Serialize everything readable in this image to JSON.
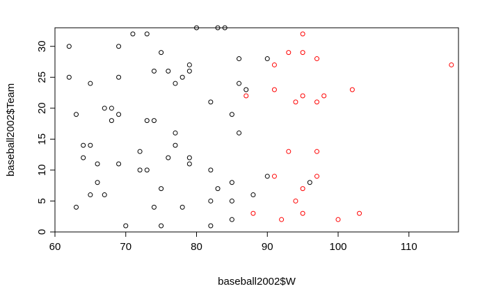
{
  "chart_data": {
    "type": "scatter",
    "xlabel": "baseball2002$W",
    "ylabel": "baseball2002$Team",
    "xlim": [
      60,
      117
    ],
    "ylim": [
      0,
      33
    ],
    "xticks": [
      60,
      70,
      80,
      90,
      100,
      110
    ],
    "yticks": [
      0,
      5,
      10,
      15,
      20,
      25,
      30
    ],
    "grid": false,
    "marker": "open-circle",
    "colors": {
      "black": "#000000",
      "red": "#ff0000"
    },
    "series": [
      {
        "color": "black",
        "points": [
          [
            62,
            30
          ],
          [
            62,
            25
          ],
          [
            63,
            19
          ],
          [
            63,
            4
          ],
          [
            64,
            14
          ],
          [
            64,
            12
          ],
          [
            65,
            24
          ],
          [
            65,
            14
          ],
          [
            65,
            6
          ],
          [
            66,
            11
          ],
          [
            66,
            8
          ],
          [
            67,
            20
          ],
          [
            67,
            6
          ],
          [
            68,
            20
          ],
          [
            68,
            18
          ],
          [
            69,
            30
          ],
          [
            69,
            25
          ],
          [
            69,
            19
          ],
          [
            69,
            11
          ],
          [
            70,
            1
          ],
          [
            71,
            32
          ],
          [
            72,
            13
          ],
          [
            72,
            10
          ],
          [
            73,
            32
          ],
          [
            73,
            18
          ],
          [
            73,
            10
          ],
          [
            74,
            26
          ],
          [
            74,
            18
          ],
          [
            74,
            4
          ],
          [
            75,
            29
          ],
          [
            75,
            7
          ],
          [
            75,
            1
          ],
          [
            76,
            26
          ],
          [
            76,
            12
          ],
          [
            77,
            24
          ],
          [
            77,
            16
          ],
          [
            77,
            14
          ],
          [
            78,
            25
          ],
          [
            78,
            4
          ],
          [
            79,
            27
          ],
          [
            79,
            26
          ],
          [
            79,
            12
          ],
          [
            79,
            11
          ],
          [
            80,
            33
          ],
          [
            82,
            21
          ],
          [
            82,
            10
          ],
          [
            82,
            5
          ],
          [
            82,
            1
          ],
          [
            83,
            33
          ],
          [
            83,
            7
          ],
          [
            84,
            33
          ],
          [
            85,
            19
          ],
          [
            85,
            8
          ],
          [
            85,
            5
          ],
          [
            85,
            2
          ],
          [
            86,
            28
          ],
          [
            86,
            24
          ],
          [
            86,
            16
          ],
          [
            87,
            23
          ],
          [
            88,
            6
          ],
          [
            90,
            28
          ],
          [
            90,
            9
          ],
          [
            96,
            8
          ]
        ]
      },
      {
        "color": "red",
        "points": [
          [
            87,
            22
          ],
          [
            88,
            3
          ],
          [
            91,
            27
          ],
          [
            91,
            23
          ],
          [
            91,
            9
          ],
          [
            92,
            2
          ],
          [
            93,
            29
          ],
          [
            93,
            13
          ],
          [
            94,
            21
          ],
          [
            94,
            5
          ],
          [
            95,
            32
          ],
          [
            95,
            29
          ],
          [
            95,
            22
          ],
          [
            95,
            7
          ],
          [
            95,
            3
          ],
          [
            97,
            28
          ],
          [
            97,
            21
          ],
          [
            97,
            13
          ],
          [
            97,
            9
          ],
          [
            98,
            22
          ],
          [
            100,
            2
          ],
          [
            102,
            23
          ],
          [
            103,
            3
          ],
          [
            116,
            27
          ]
        ]
      }
    ]
  }
}
